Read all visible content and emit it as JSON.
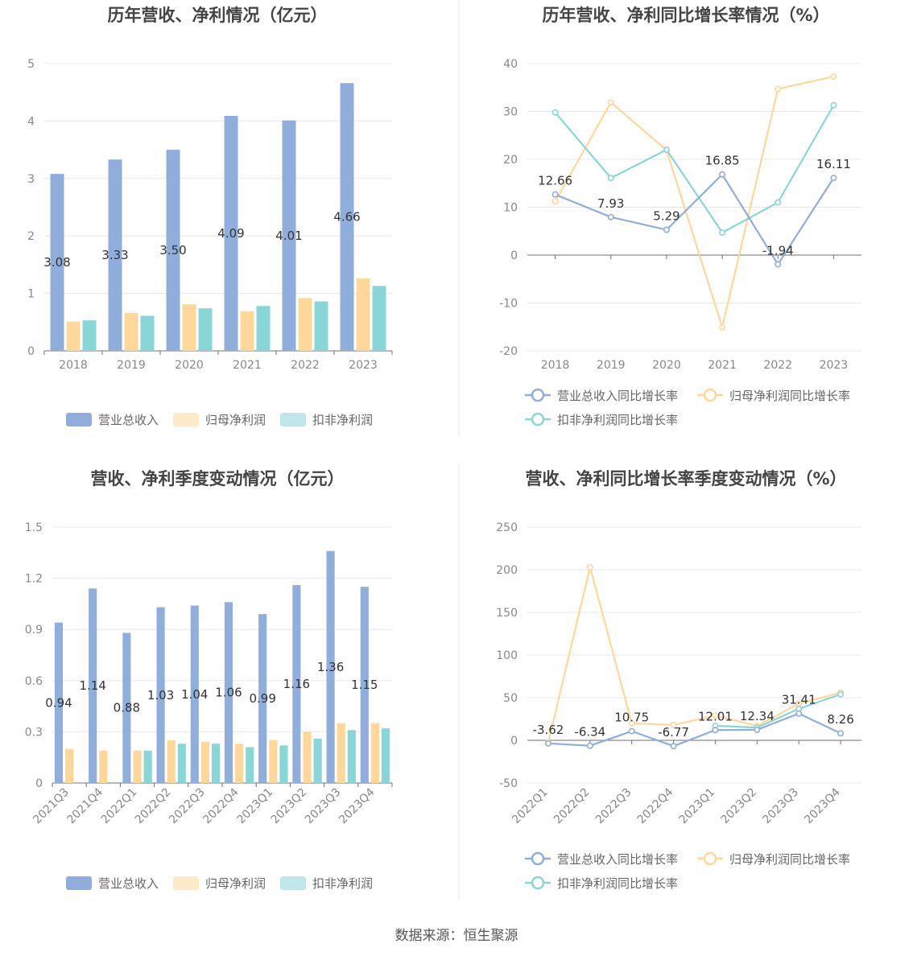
{
  "source_label": "数据来源：恒生聚源",
  "colors": {
    "revenue": "#8faedb",
    "net_profit": "#ffd899",
    "deducted_profit": "#89d6d9",
    "grid": "#e6e8ee",
    "axis": "#6e7079",
    "tick_text": "#888888",
    "title_text": "#444444",
    "label_text": "#333333",
    "legend_text": "#666666"
  },
  "chart_data": [
    {
      "type": "bar",
      "title": "历年营收、净利情况（亿元）",
      "categories": [
        "2018",
        "2019",
        "2020",
        "2021",
        "2022",
        "2023"
      ],
      "ylim": [
        0,
        5
      ],
      "yticks": [
        0,
        1,
        2,
        3,
        4,
        5
      ],
      "grid": true,
      "legend_position": "bottom",
      "series": [
        {
          "name": "营业总收入",
          "values": [
            3.08,
            3.33,
            3.5,
            4.09,
            4.01,
            4.66
          ],
          "labels": [
            "3.08",
            "3.33",
            "3.50",
            "4.09",
            "4.01",
            "4.66"
          ]
        },
        {
          "name": "归母净利润",
          "values": [
            0.51,
            0.66,
            0.81,
            0.69,
            0.92,
            1.26
          ]
        },
        {
          "name": "扣非净利润",
          "values": [
            0.53,
            0.61,
            0.74,
            0.78,
            0.86,
            1.13
          ]
        }
      ]
    },
    {
      "type": "line",
      "title": "历年营收、净利同比增长率情况（%）",
      "categories": [
        "2018",
        "2019",
        "2020",
        "2021",
        "2022",
        "2023"
      ],
      "ylim": [
        -20,
        40
      ],
      "yticks": [
        -20,
        -10,
        0,
        10,
        20,
        30,
        40
      ],
      "grid": true,
      "legend_position": "bottom",
      "series": [
        {
          "name": "营业总收入同比增长率",
          "values": [
            12.66,
            7.93,
            5.29,
            16.85,
            -1.94,
            16.11
          ],
          "labels": [
            "12.66",
            "7.93",
            "5.29",
            "16.85",
            "-1.94",
            "16.11"
          ]
        },
        {
          "name": "归母净利润同比增长率",
          "values": [
            11.2,
            31.9,
            21.9,
            -15.1,
            34.7,
            37.3
          ]
        },
        {
          "name": "扣非净利润同比增长率",
          "values": [
            29.8,
            16.1,
            22.0,
            4.7,
            11.0,
            31.3
          ]
        }
      ]
    },
    {
      "type": "bar",
      "title": "营收、净利季度变动情况（亿元）",
      "categories": [
        "2021Q3",
        "2021Q4",
        "2022Q1",
        "2022Q2",
        "2022Q3",
        "2022Q4",
        "2023Q1",
        "2023Q2",
        "2023Q3",
        "2023Q4"
      ],
      "ylim": [
        0,
        1.5
      ],
      "yticks": [
        0,
        0.3,
        0.6,
        0.9,
        1.2,
        1.5
      ],
      "grid": true,
      "legend_position": "bottom",
      "series": [
        {
          "name": "营业总收入",
          "values": [
            0.94,
            1.14,
            0.88,
            1.03,
            1.04,
            1.06,
            0.99,
            1.16,
            1.36,
            1.15
          ],
          "labels": [
            "0.94",
            "1.14",
            "0.88",
            "1.03",
            "1.04",
            "1.06",
            "0.99",
            "1.16",
            "1.36",
            "1.15"
          ]
        },
        {
          "name": "归母净利润",
          "values": [
            0.2,
            0.19,
            0.19,
            0.25,
            0.24,
            0.23,
            0.25,
            0.3,
            0.35,
            0.35
          ]
        },
        {
          "name": "扣非净利润",
          "values": [
            null,
            null,
            0.19,
            0.23,
            0.23,
            0.21,
            0.22,
            0.26,
            0.31,
            0.32
          ]
        }
      ]
    },
    {
      "type": "line",
      "title": "营收、净利同比增长率季度变动情况（%）",
      "categories": [
        "2022Q1",
        "2022Q2",
        "2022Q3",
        "2022Q4",
        "2023Q1",
        "2023Q2",
        "2023Q3",
        "2023Q4"
      ],
      "ylim": [
        -50,
        250
      ],
      "yticks": [
        -50,
        0,
        50,
        100,
        150,
        200,
        250
      ],
      "grid": true,
      "legend_position": "bottom",
      "series": [
        {
          "name": "营业总收入同比增长率",
          "values": [
            -3.62,
            -6.34,
            10.75,
            -6.77,
            12.01,
            12.34,
            31.41,
            8.26
          ],
          "labels": [
            "-3.62",
            "-6.34",
            "10.75",
            "-6.77",
            "12.01",
            "12.34",
            "31.41",
            "8.26"
          ]
        },
        {
          "name": "归母净利润同比增长率",
          "values": [
            -3.0,
            203.0,
            20.0,
            18.0,
            29.0,
            17.0,
            43.0,
            56.0
          ]
        },
        {
          "name": "扣非净利润同比增长率",
          "values": [
            null,
            null,
            null,
            null,
            17.0,
            15.0,
            37.0,
            54.0
          ]
        }
      ]
    }
  ]
}
